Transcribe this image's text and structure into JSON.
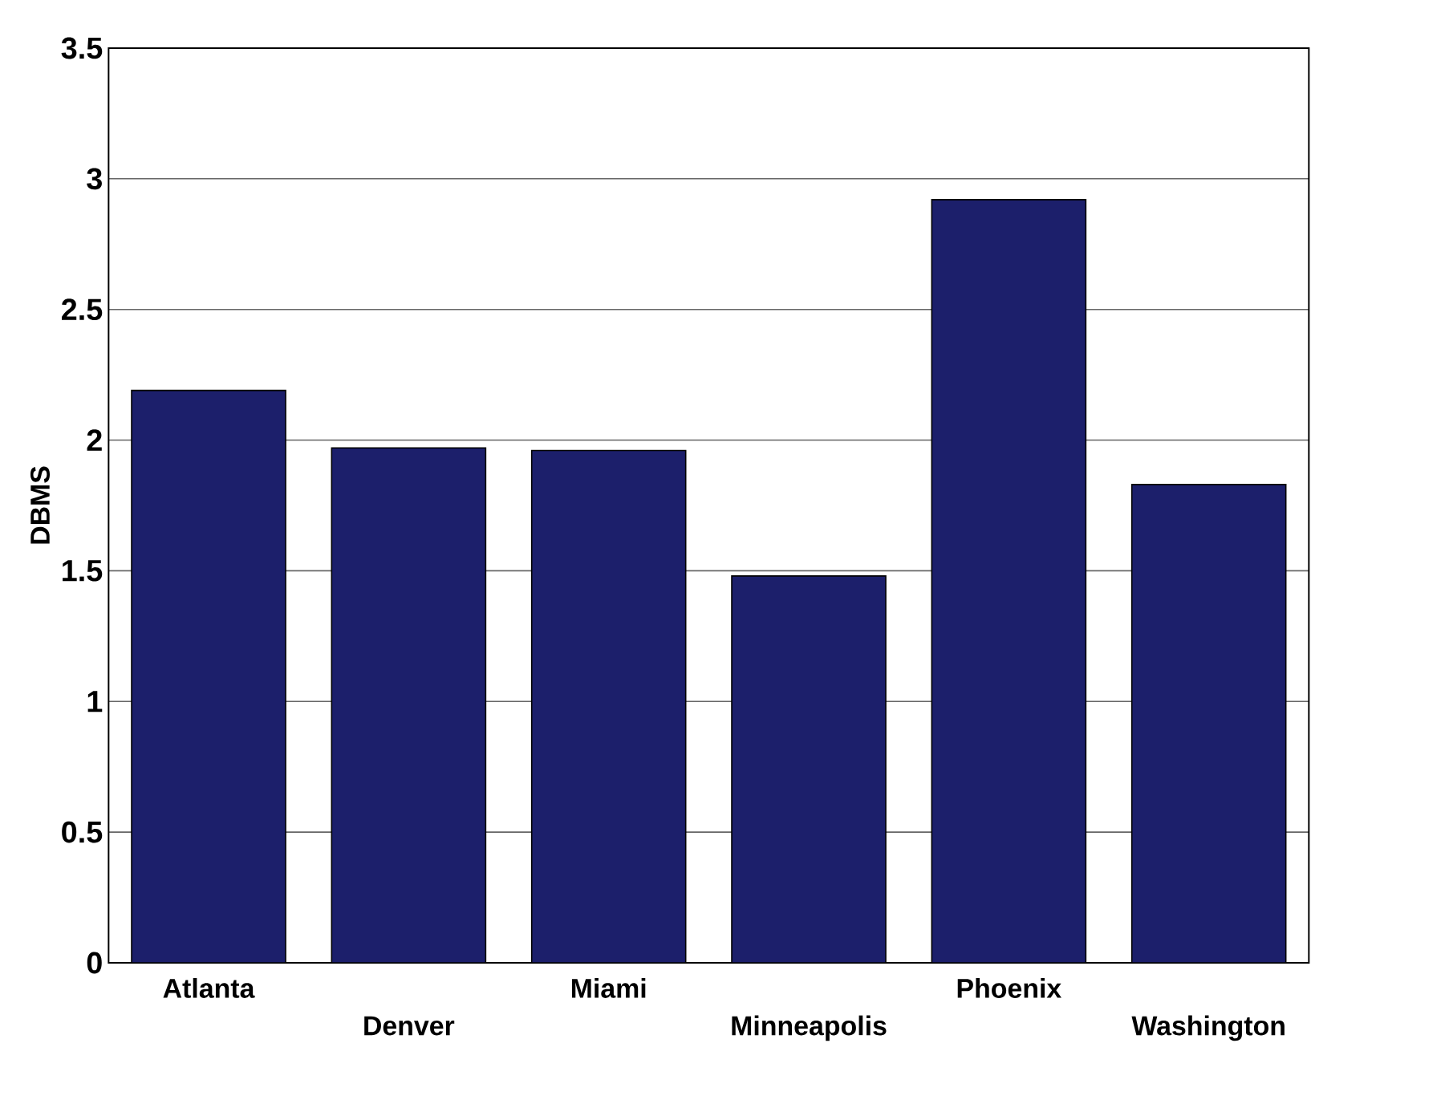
{
  "chart_data": {
    "type": "bar",
    "ylabel": "DBMS",
    "categories": [
      "Atlanta",
      "Denver",
      "Miami",
      "Minneapolis",
      "Phoenix",
      "Washington"
    ],
    "values": [
      2.19,
      1.97,
      1.96,
      1.48,
      2.92,
      1.83
    ],
    "color": "#1c1f6b",
    "ylim": [
      0,
      3.5
    ],
    "yticks": [
      0,
      0.5,
      1,
      1.5,
      2,
      2.5,
      3,
      3.5
    ],
    "grid": "y"
  }
}
